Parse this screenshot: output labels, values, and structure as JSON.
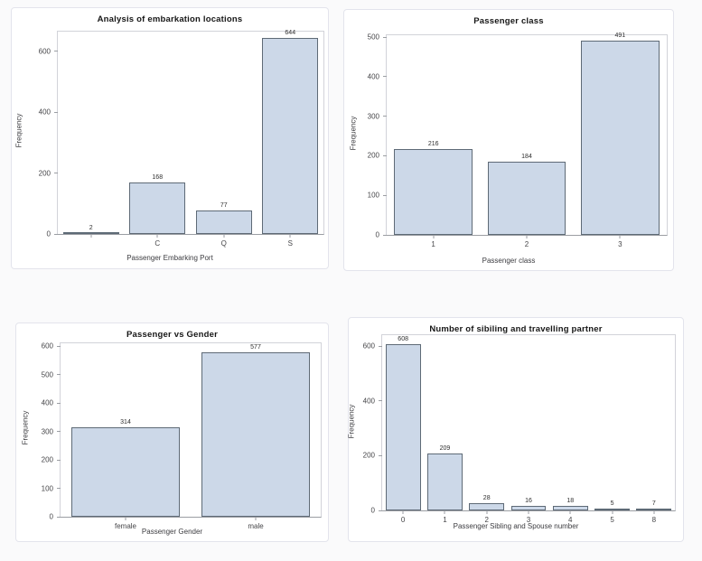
{
  "colors": {
    "bar_fill": "#ccd8e8",
    "bar_border": "#5e6a76",
    "axis_line": "#9b9ea3",
    "plot_border": "#d2d3d9",
    "panel_border": "#e3e4ec",
    "tick_text": "#454548"
  },
  "chart_data": [
    {
      "type": "bar",
      "title": "Analysis of embarkation locations",
      "xlabel": "Passenger Embarking Port",
      "ylabel": "Frequency",
      "categories": [
        "",
        "C",
        "Q",
        "S"
      ],
      "values": [
        2,
        168,
        77,
        644
      ],
      "yticks": [
        0,
        200,
        400,
        600
      ],
      "ylim": [
        0,
        665
      ],
      "grid": false,
      "legend": "none"
    },
    {
      "type": "bar",
      "title": "Passenger class",
      "xlabel": "Passenger class",
      "ylabel": "Frequency",
      "categories": [
        "1",
        "2",
        "3"
      ],
      "values": [
        216,
        184,
        491
      ],
      "yticks": [
        0,
        100,
        200,
        300,
        400,
        500
      ],
      "ylim": [
        0,
        505
      ],
      "grid": false,
      "legend": "none"
    },
    {
      "type": "bar",
      "title": "Passenger vs Gender",
      "xlabel": "Passenger Gender",
      "ylabel": "Frequency",
      "categories": [
        "female",
        "male"
      ],
      "values": [
        314,
        577
      ],
      "yticks": [
        0,
        100,
        200,
        300,
        400,
        500,
        600
      ],
      "ylim": [
        0,
        610
      ],
      "grid": false,
      "legend": "none"
    },
    {
      "type": "bar",
      "title": "Number of sibiling and travelling partner",
      "xlabel": "Passenger Sibling and Spouse number",
      "ylabel": "Frequency",
      "categories": [
        "0",
        "1",
        "2",
        "3",
        "4",
        "5",
        "8"
      ],
      "values": [
        608,
        209,
        28,
        16,
        18,
        5,
        7
      ],
      "yticks": [
        0,
        200,
        400,
        600
      ],
      "ylim": [
        0,
        640
      ],
      "grid": false,
      "legend": "none"
    }
  ]
}
